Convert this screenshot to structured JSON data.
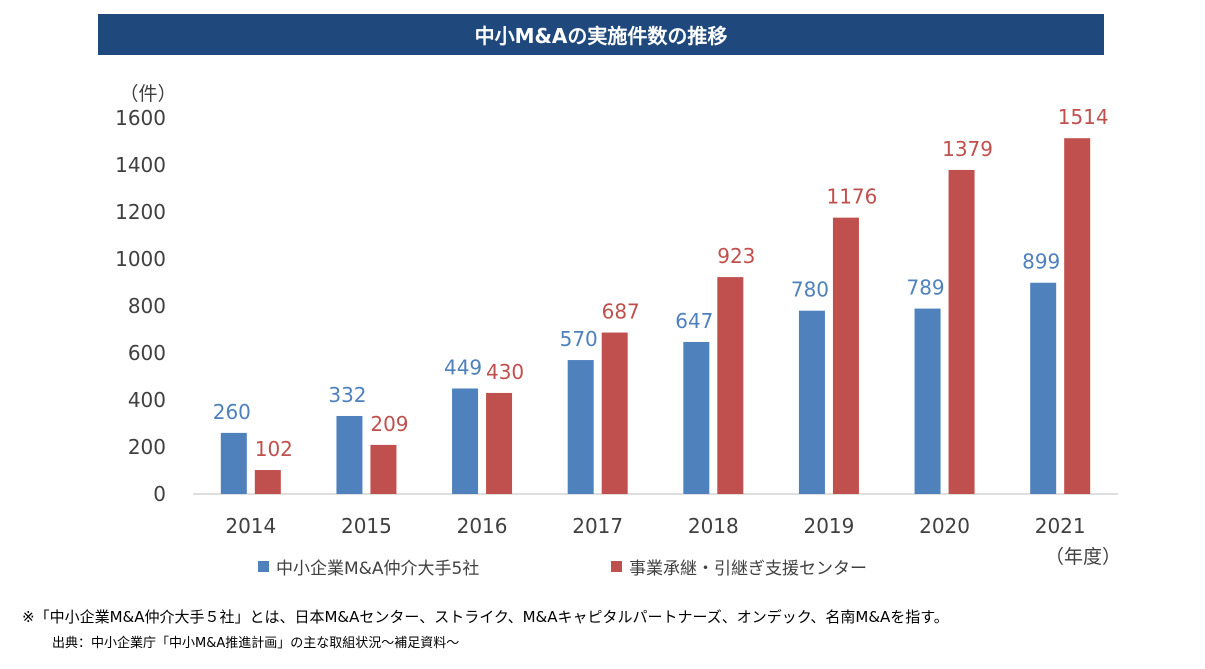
{
  "chart_data": {
    "type": "bar",
    "title": "中小M&Aの実施件数の推移",
    "ylabel": "（件）",
    "xlabel": "（年度）",
    "ylim": [
      0,
      1600
    ],
    "yticks": [
      "0",
      "200",
      "400",
      "600",
      "800",
      "1000",
      "1200",
      "1400",
      "1600"
    ],
    "categories": [
      "2014",
      "2015",
      "2016",
      "2017",
      "2018",
      "2019",
      "2020",
      "2021"
    ],
    "series": [
      {
        "name": "中小企業M&A仲介大手5社",
        "color": "#4f81bd",
        "values": [
          260,
          332,
          449,
          570,
          647,
          780,
          789,
          899
        ]
      },
      {
        "name": "事業承継・引継ぎ支援センター",
        "color": "#c0504d",
        "values": [
          102,
          209,
          430,
          687,
          923,
          1176,
          1379,
          1514
        ]
      }
    ],
    "legend": "bottom",
    "grid": false
  },
  "footnote": "※「中小企業M&A仲介大手５社」とは、日本M&Aセンター、ストライク、M&Aキャピタルパートナーズ、オンデック、名南M&Aを指す。",
  "source": "出典：中小企業庁「中小M&A推進計画」の主な取組状況～補足資料～"
}
